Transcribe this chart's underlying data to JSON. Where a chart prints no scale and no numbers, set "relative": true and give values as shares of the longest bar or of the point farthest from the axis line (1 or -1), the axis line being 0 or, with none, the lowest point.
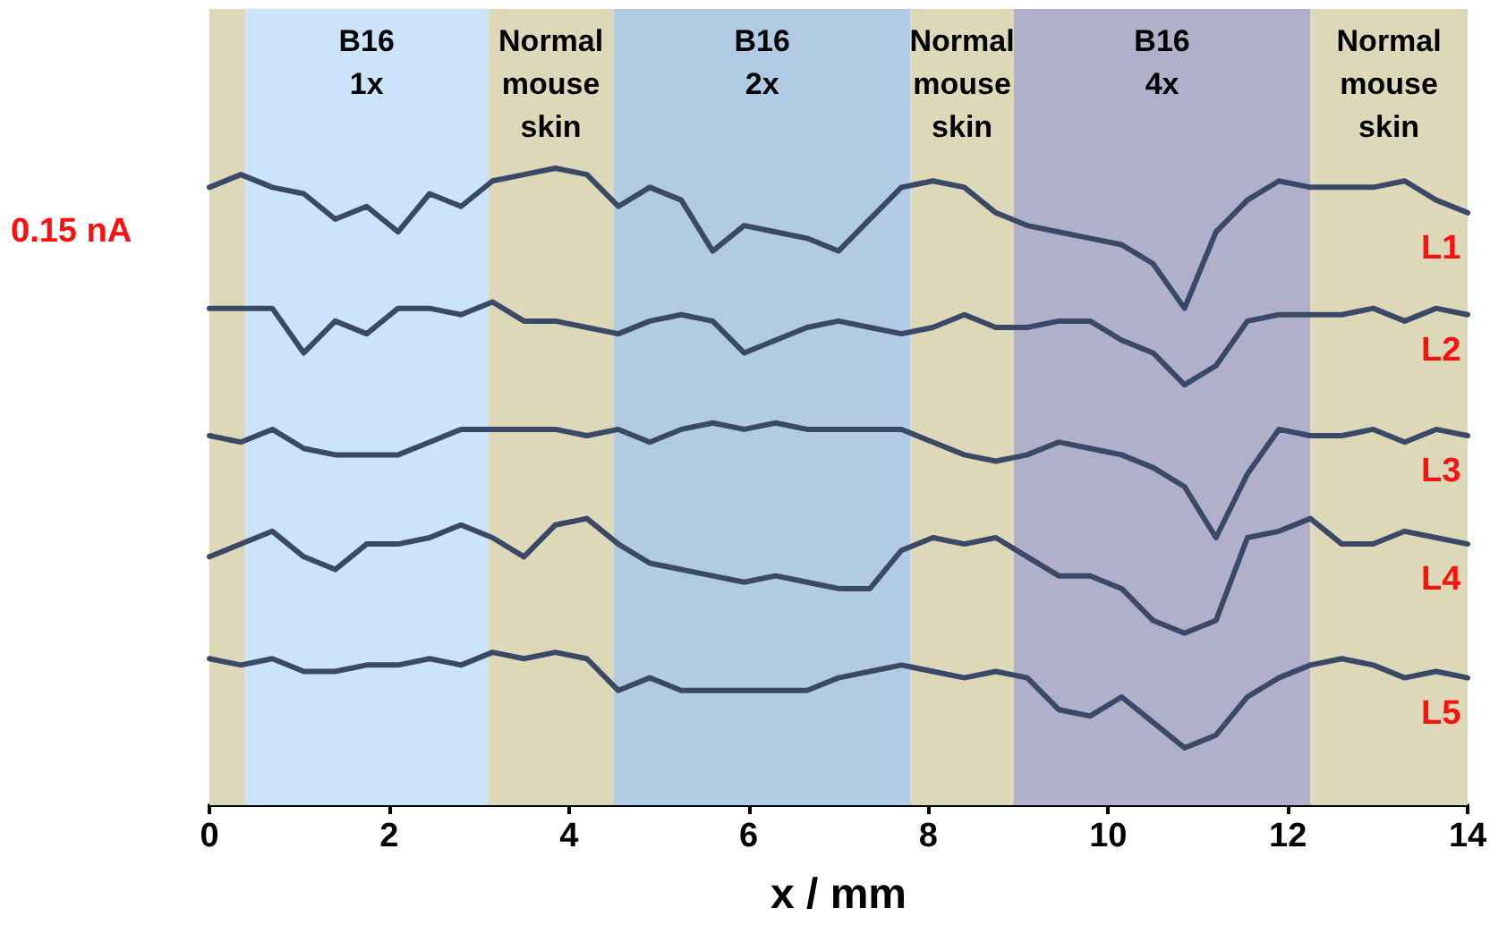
{
  "chart_data": {
    "type": "line",
    "relative": true,
    "xlabel": "x / mm",
    "xlim": [
      0,
      14
    ],
    "xticks": [
      0,
      2,
      4,
      6,
      8,
      10,
      12,
      14
    ],
    "grid": false,
    "legend": false,
    "marker": "none",
    "line_style": "solid",
    "annotations": [
      "0.15 nA"
    ],
    "x": [
      0,
      0.35,
      0.7,
      1.05,
      1.4,
      1.75,
      2.1,
      2.45,
      2.8,
      3.15,
      3.5,
      3.85,
      4.2,
      4.55,
      4.9,
      5.25,
      5.6,
      5.95,
      6.3,
      6.65,
      7.0,
      7.35,
      7.7,
      8.05,
      8.4,
      8.75,
      9.1,
      9.45,
      9.8,
      10.15,
      10.5,
      10.85,
      11.2,
      11.55,
      11.9,
      12.25,
      12.6,
      12.95,
      13.3,
      13.65,
      14.0
    ],
    "series": [
      {
        "name": "L1",
        "color": "#3a4a66",
        "values": [
          0.97,
          0.99,
          0.97,
          0.96,
          0.92,
          0.94,
          0.9,
          0.96,
          0.94,
          0.98,
          0.99,
          1.0,
          0.99,
          0.94,
          0.97,
          0.95,
          0.87,
          0.91,
          0.9,
          0.89,
          0.87,
          0.92,
          0.97,
          0.98,
          0.97,
          0.93,
          0.91,
          0.9,
          0.89,
          0.88,
          0.85,
          0.78,
          0.9,
          0.95,
          0.98,
          0.97,
          0.97,
          0.97,
          0.98,
          0.95,
          0.93
        ]
      },
      {
        "name": "L2",
        "color": "#3a4a66",
        "values": [
          0.78,
          0.78,
          0.78,
          0.71,
          0.76,
          0.74,
          0.78,
          0.78,
          0.77,
          0.79,
          0.76,
          0.76,
          0.75,
          0.74,
          0.76,
          0.77,
          0.76,
          0.71,
          0.73,
          0.75,
          0.76,
          0.75,
          0.74,
          0.75,
          0.77,
          0.75,
          0.75,
          0.76,
          0.76,
          0.73,
          0.71,
          0.66,
          0.69,
          0.76,
          0.77,
          0.77,
          0.77,
          0.78,
          0.76,
          0.78,
          0.77
        ]
      },
      {
        "name": "L3",
        "color": "#3a4a66",
        "values": [
          0.58,
          0.57,
          0.59,
          0.56,
          0.55,
          0.55,
          0.55,
          0.57,
          0.59,
          0.59,
          0.59,
          0.59,
          0.58,
          0.59,
          0.57,
          0.59,
          0.6,
          0.59,
          0.6,
          0.59,
          0.59,
          0.59,
          0.59,
          0.57,
          0.55,
          0.54,
          0.55,
          0.57,
          0.56,
          0.55,
          0.53,
          0.5,
          0.42,
          0.52,
          0.59,
          0.58,
          0.58,
          0.59,
          0.57,
          0.59,
          0.58
        ]
      },
      {
        "name": "L4",
        "color": "#3a4a66",
        "values": [
          0.39,
          0.41,
          0.43,
          0.39,
          0.37,
          0.41,
          0.41,
          0.42,
          0.44,
          0.42,
          0.39,
          0.44,
          0.45,
          0.41,
          0.38,
          0.37,
          0.36,
          0.35,
          0.36,
          0.35,
          0.34,
          0.34,
          0.4,
          0.42,
          0.41,
          0.42,
          0.39,
          0.36,
          0.36,
          0.34,
          0.29,
          0.27,
          0.29,
          0.42,
          0.43,
          0.45,
          0.41,
          0.41,
          0.43,
          0.42,
          0.41
        ]
      },
      {
        "name": "L5",
        "color": "#3a4a66",
        "values": [
          0.23,
          0.22,
          0.23,
          0.21,
          0.21,
          0.22,
          0.22,
          0.23,
          0.22,
          0.24,
          0.23,
          0.24,
          0.23,
          0.18,
          0.2,
          0.18,
          0.18,
          0.18,
          0.18,
          0.18,
          0.2,
          0.21,
          0.22,
          0.21,
          0.2,
          0.21,
          0.2,
          0.15,
          0.14,
          0.17,
          0.13,
          0.09,
          0.11,
          0.17,
          0.2,
          0.22,
          0.23,
          0.22,
          0.2,
          0.21,
          0.2
        ]
      }
    ],
    "bands": [
      {
        "axis": "x",
        "from": 0,
        "to": 0.4,
        "color": "#ddd8b8"
      },
      {
        "axis": "x",
        "from": 0.4,
        "to": 3.1,
        "label": "B16\n1x",
        "color": "#cce4fa"
      },
      {
        "axis": "x",
        "from": 3.1,
        "to": 4.5,
        "label": "Normal\nmouse\nskin",
        "color": "#ddd8b8"
      },
      {
        "axis": "x",
        "from": 4.5,
        "to": 7.8,
        "label": "B16\n2x",
        "color": "#b0cbe3"
      },
      {
        "axis": "x",
        "from": 7.8,
        "to": 8.95,
        "label": "Normal\nmouse\nskin",
        "color": "#ddd8b8"
      },
      {
        "axis": "x",
        "from": 8.95,
        "to": 12.25,
        "label": "B16\n4x",
        "color": "#b0b0cb"
      },
      {
        "axis": "x",
        "from": 12.25,
        "to": 14,
        "label": "Normal\nmouse\nskin",
        "color": "#ddd8b8"
      }
    ]
  }
}
